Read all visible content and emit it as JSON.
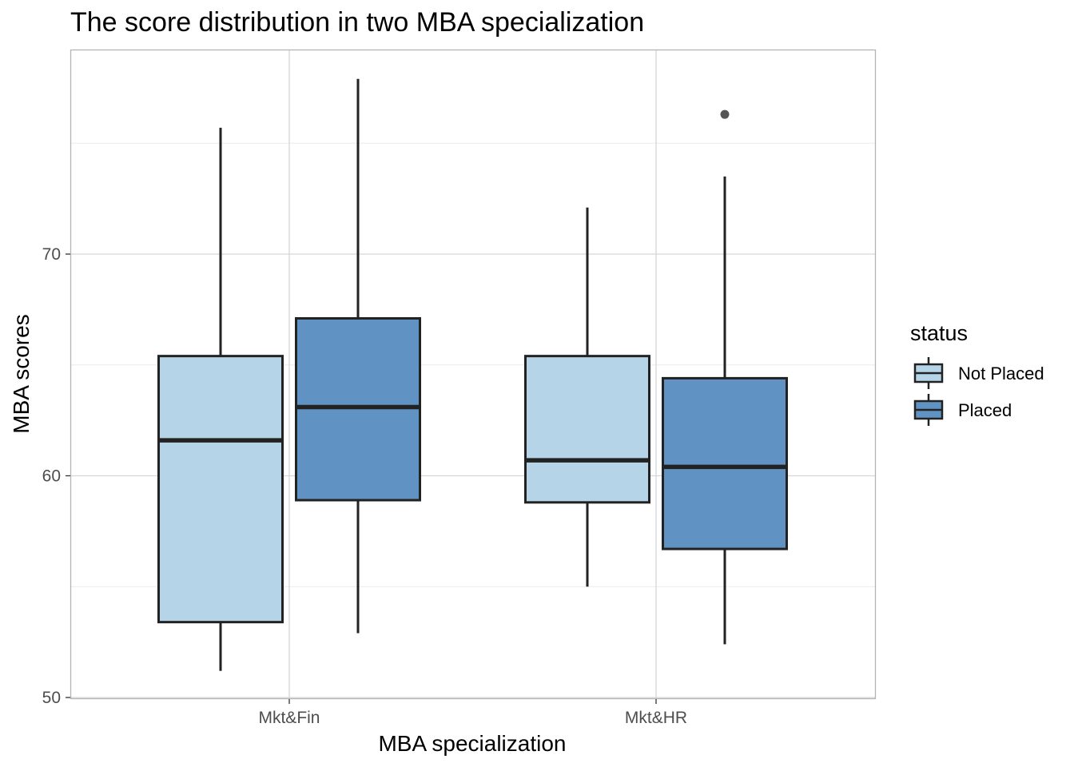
{
  "chart_data": {
    "type": "boxplot",
    "title": "The score distribution in two MBA specialization",
    "xlabel": "MBA specialization",
    "ylabel": "MBA scores",
    "categories": [
      "Mkt&Fin",
      "Mkt&HR"
    ],
    "yticks": [
      50,
      60,
      70
    ],
    "ylim": [
      50,
      78.2
    ],
    "grid": true,
    "legend": {
      "title": "status",
      "position": "right"
    },
    "series": [
      {
        "name": "Not Placed",
        "color": "#b6d4e7",
        "boxes": [
          {
            "category": "Mkt&Fin",
            "min": 51.2,
            "q1": 53.4,
            "median": 61.6,
            "q3": 65.4,
            "max": 75.7,
            "outliers": []
          },
          {
            "category": "Mkt&HR",
            "min": 55.0,
            "q1": 58.8,
            "median": 60.7,
            "q3": 65.4,
            "max": 72.1,
            "outliers": []
          }
        ]
      },
      {
        "name": "Placed",
        "color": "#6093c3",
        "boxes": [
          {
            "category": "Mkt&Fin",
            "min": 52.9,
            "q1": 58.9,
            "median": 63.1,
            "q3": 67.1,
            "max": 77.9,
            "outliers": []
          },
          {
            "category": "Mkt&HR",
            "min": 52.4,
            "q1": 56.7,
            "median": 60.4,
            "q3": 64.4,
            "max": 73.5,
            "outliers": [
              76.3
            ]
          }
        ]
      }
    ]
  },
  "colors": {
    "grid_major": "#d6d6d6",
    "grid_minor": "#ebebeb",
    "panel_border": "#b3b3b3",
    "box_stroke": "#222222",
    "outlier": "#555555"
  }
}
